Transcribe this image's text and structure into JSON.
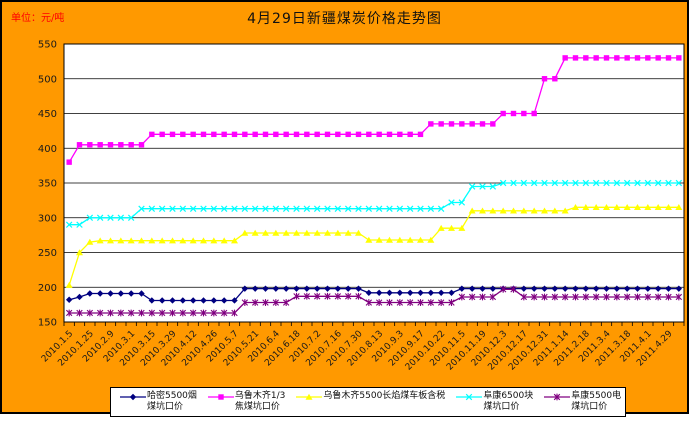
{
  "chart_data": {
    "type": "line",
    "title": "4月29日新疆煤炭价格走势图",
    "unit_label": "单位：元/吨",
    "ylim": [
      150,
      550
    ],
    "ytick_step": 50,
    "grid": true,
    "legend_position": "bottom",
    "points_per_series": 60,
    "x_label_every": 2,
    "x_labels": [
      "2010.1.5",
      "2010.1.25",
      "2010.2.9",
      "2010.3.1",
      "2010.3.15",
      "2010.3.29",
      "2010.4.12",
      "2010.4.26",
      "2010.5.7",
      "2010.5.21",
      "2010.6.4",
      "2010.6.18",
      "2010.7.2",
      "2010.7.16",
      "2010.7.30",
      "2010.8.13",
      "2010.9.3",
      "2010.9.17",
      "2010.10.22",
      "2010.11.5",
      "2010.11.19",
      "2010.12.3",
      "2010.12.17",
      "2010.12.31",
      "2011.1.14",
      "2011.2.18",
      "2011.3.4",
      "2011.3.18",
      "2011.4.1",
      "2011.4.29"
    ],
    "series": [
      {
        "name": "哈密5500烟煤坑口价",
        "legend_lines": [
          "哈密5500烟",
          "煤坑口价"
        ],
        "color": "#000080",
        "marker": "diamond",
        "values": [
          182,
          186,
          191,
          191,
          191,
          191,
          191,
          191,
          181,
          181,
          181,
          181,
          181,
          181,
          181,
          181,
          181,
          198,
          198,
          198,
          198,
          198,
          198,
          198,
          198,
          198,
          198,
          198,
          198,
          192,
          192,
          192,
          192,
          192,
          192,
          192,
          192,
          192,
          198,
          198,
          198,
          198,
          198,
          198,
          198,
          198,
          198,
          198,
          198,
          198,
          198,
          198,
          198,
          198,
          198,
          198,
          198,
          198,
          198,
          198
        ]
      },
      {
        "name": "乌鲁木齐1/3焦煤坑口价",
        "legend_lines": [
          "乌鲁木齐1/3",
          "焦煤坑口价"
        ],
        "color": "#FF00FF",
        "marker": "square",
        "values": [
          380,
          405,
          405,
          405,
          405,
          405,
          405,
          405,
          420,
          420,
          420,
          420,
          420,
          420,
          420,
          420,
          420,
          420,
          420,
          420,
          420,
          420,
          420,
          420,
          420,
          420,
          420,
          420,
          420,
          420,
          420,
          420,
          420,
          420,
          420,
          435,
          435,
          435,
          435,
          435,
          435,
          435,
          450,
          450,
          450,
          450,
          500,
          500,
          530,
          530,
          530,
          530,
          530,
          530,
          530,
          530,
          530,
          530,
          530,
          530
        ]
      },
      {
        "name": "乌鲁木齐5500长焰煤车板含税",
        "legend_lines": [
          "乌鲁木齐5500长焰煤车板含税"
        ],
        "color": "#FFFF00",
        "marker": "triangle",
        "values": [
          203,
          250,
          265,
          267,
          267,
          267,
          267,
          267,
          267,
          267,
          267,
          267,
          267,
          267,
          267,
          267,
          267,
          278,
          278,
          278,
          278,
          278,
          278,
          278,
          278,
          278,
          278,
          278,
          278,
          268,
          268,
          268,
          268,
          268,
          268,
          268,
          285,
          285,
          285,
          310,
          310,
          310,
          310,
          310,
          310,
          310,
          310,
          310,
          310,
          315,
          315,
          315,
          315,
          315,
          315,
          315,
          315,
          315,
          315,
          315
        ]
      },
      {
        "name": "阜康6500块煤坑口价",
        "legend_lines": [
          "阜康6500块",
          "煤坑口价"
        ],
        "color": "#00FFFF",
        "marker": "x",
        "values": [
          290,
          290,
          300,
          300,
          300,
          300,
          300,
          313,
          313,
          313,
          313,
          313,
          313,
          313,
          313,
          313,
          313,
          313,
          313,
          313,
          313,
          313,
          313,
          313,
          313,
          313,
          313,
          313,
          313,
          313,
          313,
          313,
          313,
          313,
          313,
          313,
          313,
          322,
          322,
          345,
          345,
          345,
          350,
          350,
          350,
          350,
          350,
          350,
          350,
          350,
          350,
          350,
          350,
          350,
          350,
          350,
          350,
          350,
          350,
          350
        ]
      },
      {
        "name": "阜康5500电煤坑口价",
        "legend_lines": [
          "阜康5500电",
          "煤坑口价"
        ],
        "color": "#800080",
        "marker": "star",
        "values": [
          163,
          163,
          163,
          163,
          163,
          163,
          163,
          163,
          163,
          163,
          163,
          163,
          163,
          163,
          163,
          163,
          163,
          178,
          178,
          178,
          178,
          178,
          187,
          187,
          187,
          187,
          187,
          187,
          187,
          178,
          178,
          178,
          178,
          178,
          178,
          178,
          178,
          178,
          186,
          186,
          186,
          186,
          197,
          197,
          186,
          186,
          186,
          186,
          186,
          186,
          186,
          186,
          186,
          186,
          186,
          186,
          186,
          186,
          186,
          186
        ]
      }
    ],
    "colors": {
      "chart_background": "#FF9900",
      "plot_background": "#FFFFFF",
      "gridline": "#000000",
      "axis_text": "#1a1a1a",
      "unit_label": "#FF0000",
      "legend_background": "#FFFFFF"
    }
  }
}
